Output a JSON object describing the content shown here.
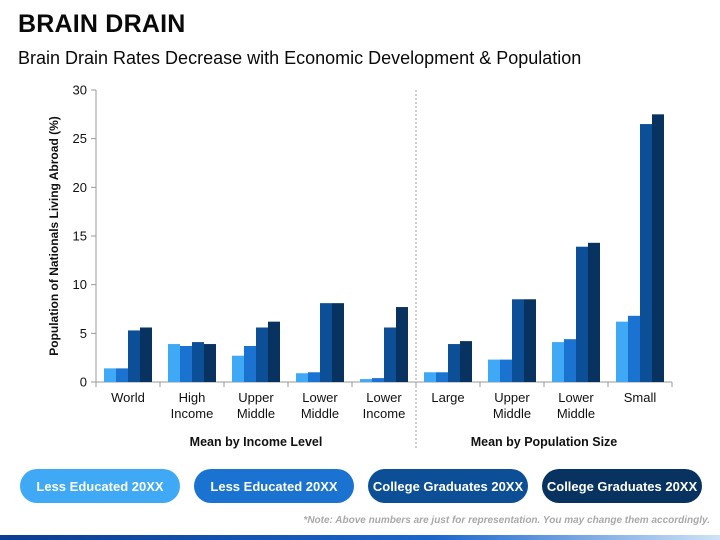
{
  "header": {
    "title": "BRAIN DRAIN",
    "subtitle": "Brain Drain Rates Decrease with Economic Development & Population"
  },
  "chart_data": {
    "type": "bar",
    "ylabel": "Population of Nationals Living Abroad (%)",
    "ylim": [
      0,
      30
    ],
    "yticks": [
      0,
      5,
      10,
      15,
      20,
      25,
      30
    ],
    "grid": false,
    "legend_placement": "bottom",
    "categories": [
      {
        "line1": "World",
        "line2": ""
      },
      {
        "line1": "High",
        "line2": "Income"
      },
      {
        "line1": "Upper",
        "line2": "Middle"
      },
      {
        "line1": "Lower",
        "line2": "Middle"
      },
      {
        "line1": "Lower",
        "line2": "Income"
      },
      {
        "line1": "Large",
        "line2": ""
      },
      {
        "line1": "Upper",
        "line2": "Middle"
      },
      {
        "line1": "Lower",
        "line2": "Middle"
      },
      {
        "line1": "Small",
        "line2": ""
      }
    ],
    "groups": [
      {
        "label": "Mean by Income Level",
        "start": 0,
        "end": 4
      },
      {
        "label": "Mean by Population Size",
        "start": 5,
        "end": 8
      }
    ],
    "series": [
      {
        "name": "Less Educated 20XX",
        "color": "#3fa9f5",
        "values": [
          1.4,
          3.9,
          2.7,
          0.9,
          0.3,
          1.0,
          2.3,
          4.1,
          6.2
        ]
      },
      {
        "name": "Less Educated 20XX",
        "color": "#1a73d1",
        "values": [
          1.4,
          3.7,
          3.7,
          1.0,
          0.4,
          1.0,
          2.3,
          4.4,
          6.8
        ]
      },
      {
        "name": "College Graduates 20XX",
        "color": "#0d4f96",
        "values": [
          5.3,
          4.1,
          5.6,
          8.1,
          5.6,
          3.9,
          8.5,
          13.9,
          26.5
        ]
      },
      {
        "name": "College Graduates 20XX",
        "color": "#083260",
        "values": [
          5.6,
          3.9,
          6.2,
          8.1,
          7.7,
          4.2,
          8.5,
          14.3,
          27.5
        ]
      }
    ]
  },
  "note": "*Note: Above numbers are just for representation. You may change them accordingly."
}
